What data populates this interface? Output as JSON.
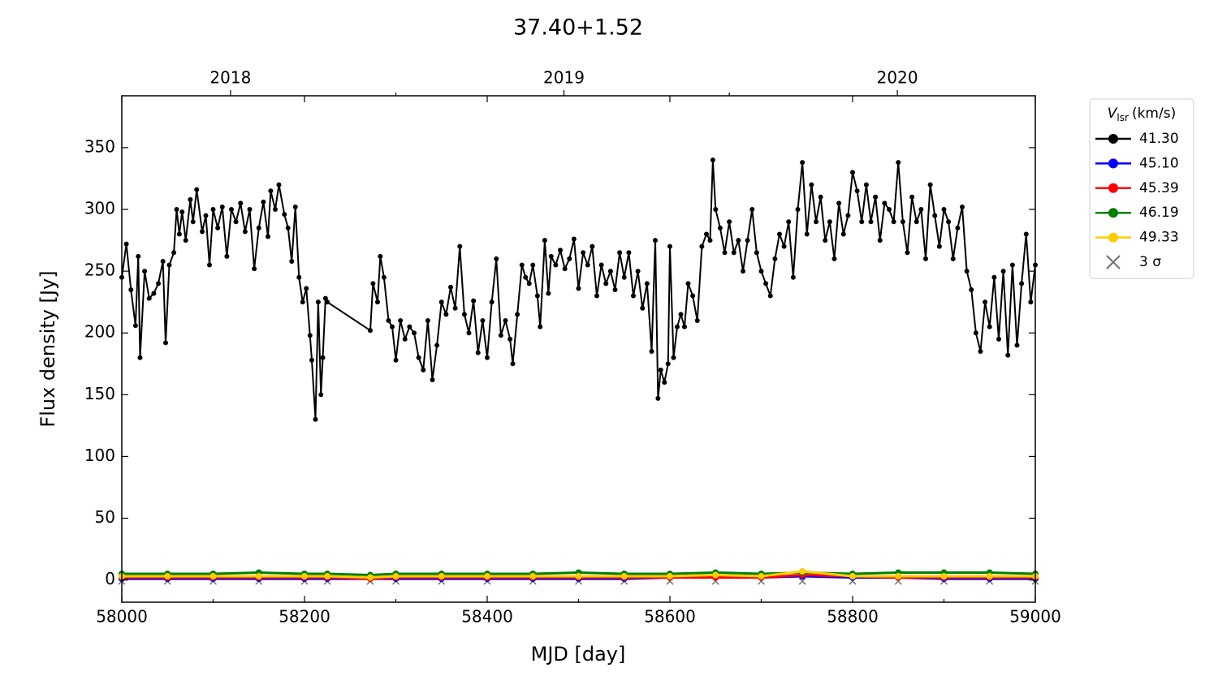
{
  "chart_data": {
    "type": "line",
    "title": "37.40+1.52",
    "x_label": "MJD [day]",
    "y_label": "Flux density [Jy]",
    "xlim": [
      58000,
      59000
    ],
    "ylim": [
      -18,
      392
    ],
    "xticks": [
      58000,
      58200,
      58400,
      58600,
      58800,
      59000
    ],
    "xminor_ticks": [
      58100,
      58300,
      58500,
      58700,
      58900
    ],
    "yticks": [
      0,
      50,
      100,
      150,
      200,
      250,
      300,
      350
    ],
    "x2ticks": [
      {
        "value": 58119,
        "label": "2018"
      },
      {
        "value": 58484,
        "label": "2019"
      },
      {
        "value": 58849,
        "label": "2020"
      }
    ],
    "x2minor_ticks": [
      58300,
      58665
    ],
    "legend_position": "outside-right",
    "legend_title": {
      "symbol": "V",
      "subscript": "lsr",
      "unit": "(km/s)"
    },
    "series": [
      {
        "name": "41.30",
        "color": "#000000",
        "marker": "o",
        "x": [
          58000,
          58005,
          58010,
          58015,
          58018,
          58020,
          58025,
          58030,
          58035,
          58040,
          58045,
          58048,
          58052,
          58057,
          58060,
          58063,
          58066,
          58070,
          58075,
          58078,
          58082,
          58088,
          58092,
          58096,
          58100,
          58105,
          58110,
          58115,
          58120,
          58125,
          58130,
          58135,
          58140,
          58145,
          58150,
          58155,
          58160,
          58163,
          58168,
          58172,
          58178,
          58182,
          58186,
          58190,
          58194,
          58198,
          58202,
          58206,
          58208,
          58212,
          58215,
          58218,
          58220,
          58223,
          58225,
          58272,
          58275,
          58280,
          58283,
          58287,
          58292,
          58296,
          58300,
          58305,
          58310,
          58315,
          58320,
          58325,
          58330,
          58335,
          58340,
          58345,
          58350,
          58355,
          58360,
          58365,
          58370,
          58375,
          58380,
          58385,
          58390,
          58395,
          58400,
          58405,
          58410,
          58415,
          58420,
          58425,
          58428,
          58433,
          58438,
          58442,
          58446,
          58450,
          58455,
          58458,
          58463,
          58467,
          58470,
          58475,
          58480,
          58485,
          58490,
          58495,
          58500,
          58505,
          58510,
          58515,
          58520,
          58525,
          58530,
          58535,
          58540,
          58545,
          58550,
          58555,
          58560,
          58565,
          58570,
          58575,
          58580,
          58584,
          58587,
          58590,
          58594,
          58598,
          58600,
          58604,
          58608,
          58612,
          58616,
          58620,
          58625,
          58630,
          58635,
          58640,
          58644,
          58647,
          58650,
          58655,
          58660,
          58665,
          58670,
          58675,
          58680,
          58685,
          58690,
          58695,
          58700,
          58705,
          58710,
          58715,
          58720,
          58725,
          58730,
          58735,
          58740,
          58745,
          58750,
          58755,
          58760,
          58765,
          58770,
          58775,
          58780,
          58785,
          58790,
          58795,
          58800,
          58805,
          58810,
          58815,
          58820,
          58825,
          58830,
          58835,
          58840,
          58845,
          58850,
          58855,
          58860,
          58865,
          58870,
          58875,
          58880,
          58885,
          58890,
          58895,
          58900,
          58905,
          58910,
          58915,
          58920,
          58925,
          58930,
          58935,
          58940,
          58945,
          58950,
          58955,
          58960,
          58965,
          58970,
          58975,
          58980,
          58985,
          58990,
          58995,
          59000
        ],
        "values": [
          245,
          272,
          235,
          206,
          262,
          180,
          250,
          228,
          232,
          240,
          258,
          192,
          255,
          265,
          300,
          280,
          298,
          275,
          308,
          290,
          316,
          282,
          295,
          255,
          300,
          285,
          302,
          262,
          300,
          290,
          305,
          282,
          300,
          252,
          285,
          306,
          278,
          315,
          300,
          320,
          296,
          285,
          258,
          302,
          245,
          225,
          236,
          198,
          178,
          130,
          225,
          150,
          180,
          228,
          225,
          202,
          240,
          225,
          262,
          245,
          210,
          205,
          178,
          210,
          195,
          205,
          200,
          180,
          170,
          210,
          162,
          190,
          225,
          215,
          237,
          220,
          270,
          215,
          200,
          226,
          184,
          210,
          180,
          225,
          260,
          198,
          210,
          195,
          175,
          215,
          255,
          245,
          240,
          255,
          230,
          205,
          275,
          232,
          262,
          255,
          267,
          252,
          260,
          276,
          236,
          265,
          255,
          270,
          230,
          255,
          240,
          250,
          235,
          265,
          245,
          265,
          230,
          250,
          220,
          240,
          185,
          275,
          147,
          170,
          160,
          175,
          270,
          180,
          205,
          215,
          205,
          240,
          230,
          210,
          270,
          280,
          275,
          340,
          300,
          285,
          265,
          290,
          265,
          275,
          250,
          275,
          300,
          265,
          250,
          240,
          230,
          260,
          280,
          270,
          290,
          245,
          300,
          338,
          280,
          320,
          290,
          310,
          275,
          290,
          260,
          305,
          280,
          295,
          330,
          315,
          290,
          320,
          290,
          310,
          275,
          305,
          300,
          290,
          338,
          290,
          265,
          310,
          290,
          300,
          260,
          320,
          295,
          270,
          300,
          290,
          260,
          285,
          302,
          250,
          235,
          200,
          185,
          225,
          205,
          245,
          195,
          250,
          182,
          255,
          190,
          240,
          280,
          225,
          255
        ]
      },
      {
        "name": "45.10",
        "color": "#0000ff",
        "marker": "o",
        "x": [
          58000,
          58050,
          58100,
          58150,
          58200,
          58225,
          58272,
          58300,
          58350,
          58400,
          58450,
          58500,
          58550,
          58600,
          58650,
          58700,
          58745,
          58800,
          58850,
          58900,
          58950,
          59000
        ],
        "values": [
          1,
          1,
          1,
          1,
          1,
          1,
          1,
          1,
          1,
          1,
          1,
          1,
          1,
          2,
          2,
          2,
          3,
          2,
          2,
          1,
          1,
          1
        ]
      },
      {
        "name": "45.39",
        "color": "#ff0000",
        "marker": "o",
        "x": [
          58000,
          58050,
          58100,
          58150,
          58200,
          58225,
          58272,
          58300,
          58350,
          58400,
          58450,
          58500,
          58550,
          58600,
          58650,
          58700,
          58745,
          58800,
          58850,
          58900,
          58950,
          59000
        ],
        "values": [
          2,
          2,
          2,
          2,
          2,
          2,
          1,
          2,
          2,
          2,
          2,
          2,
          2,
          2,
          2,
          2,
          4,
          3,
          2,
          2,
          2,
          2
        ]
      },
      {
        "name": "46.19",
        "color": "#008000",
        "marker": "o",
        "x": [
          58000,
          58050,
          58100,
          58150,
          58200,
          58225,
          58272,
          58300,
          58350,
          58400,
          58450,
          58500,
          58550,
          58600,
          58650,
          58700,
          58745,
          58800,
          58850,
          58900,
          58950,
          59000
        ],
        "values": [
          5,
          5,
          5,
          6,
          5,
          5,
          4,
          5,
          5,
          5,
          5,
          6,
          5,
          5,
          6,
          5,
          6,
          5,
          6,
          6,
          6,
          5
        ]
      },
      {
        "name": "49.33",
        "color": "#ffcc00",
        "marker": "o",
        "x": [
          58000,
          58050,
          58100,
          58150,
          58200,
          58225,
          58272,
          58300,
          58350,
          58400,
          58450,
          58500,
          58550,
          58600,
          58650,
          58700,
          58745,
          58800,
          58850,
          58900,
          58950,
          59000
        ],
        "values": [
          3,
          3,
          3,
          3,
          3,
          3,
          2,
          3,
          3,
          3,
          3,
          3,
          3,
          3,
          4,
          3,
          7,
          3,
          3,
          3,
          3,
          3
        ]
      },
      {
        "name": "3 σ",
        "color": "#707070",
        "marker": "x",
        "x": [
          58000,
          58050,
          58100,
          58150,
          58200,
          58225,
          58272,
          58300,
          58350,
          58400,
          58450,
          58500,
          58550,
          58600,
          58650,
          58700,
          58745,
          58800,
          58850,
          58900,
          58950,
          59000
        ],
        "values": [
          -1,
          -1,
          -1,
          -1,
          -1,
          -1,
          -1,
          -1,
          -1,
          -1,
          -1,
          -1,
          -1,
          -1,
          -1,
          -1,
          -1,
          -1,
          -1,
          -1,
          -1,
          -1
        ]
      }
    ]
  }
}
